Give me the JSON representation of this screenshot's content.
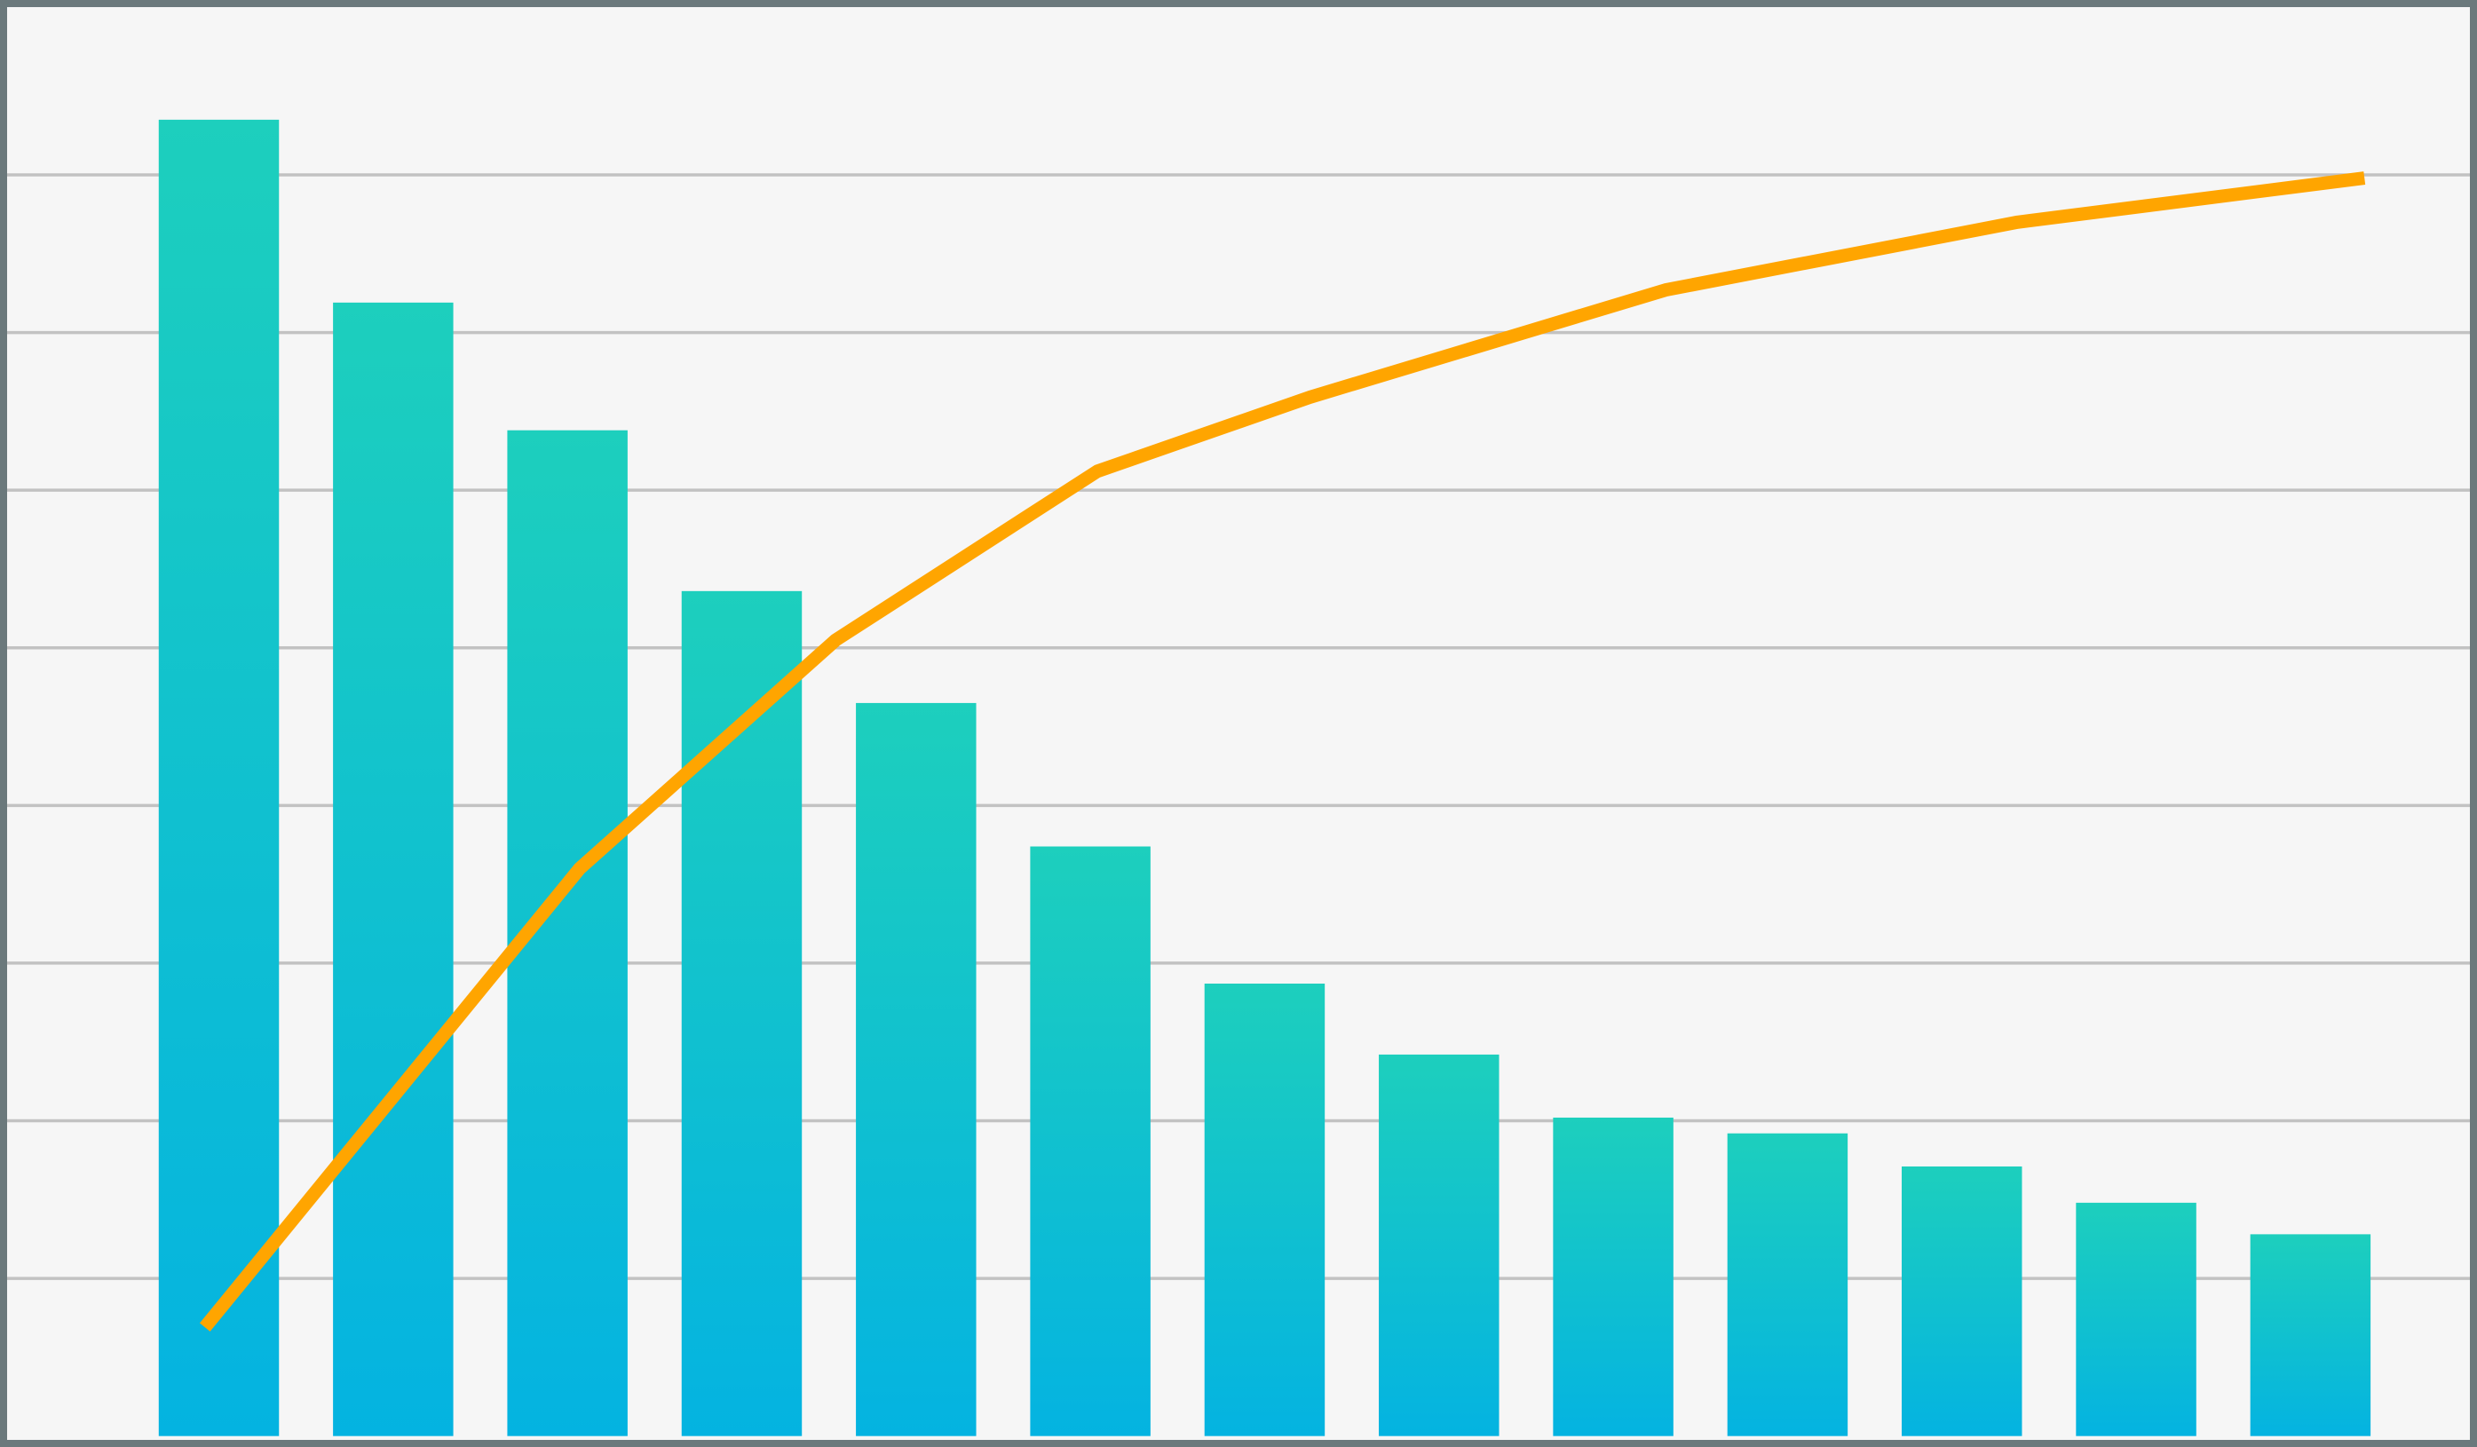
{
  "chart_data": {
    "type": "bar",
    "values": [
      83.5,
      71.9,
      63.8,
      53.6,
      46.5,
      37.4,
      28.7,
      24.2,
      20.2,
      19.2,
      17.1,
      14.8,
      12.8
    ],
    "gradient": [
      "#1dcfbd",
      "#04b3e1"
    ],
    "ylim": [
      -0.3,
      90.7
    ],
    "yticks": [
      10,
      20,
      30,
      40,
      50,
      60,
      70,
      80
    ],
    "xlim": [
      -1.22,
      12.92
    ],
    "grid": true,
    "grid_color": "#c2c2c2",
    "line": {
      "type": "line",
      "color": "#ffa500",
      "x": [
        -0.08,
        2.07,
        3.54,
        5.04,
        6.26,
        8.3,
        10.32,
        12.31
      ],
      "values": [
        6.9,
        36.0,
        50.5,
        61.2,
        65.9,
        72.7,
        77.0,
        79.8
      ]
    }
  }
}
